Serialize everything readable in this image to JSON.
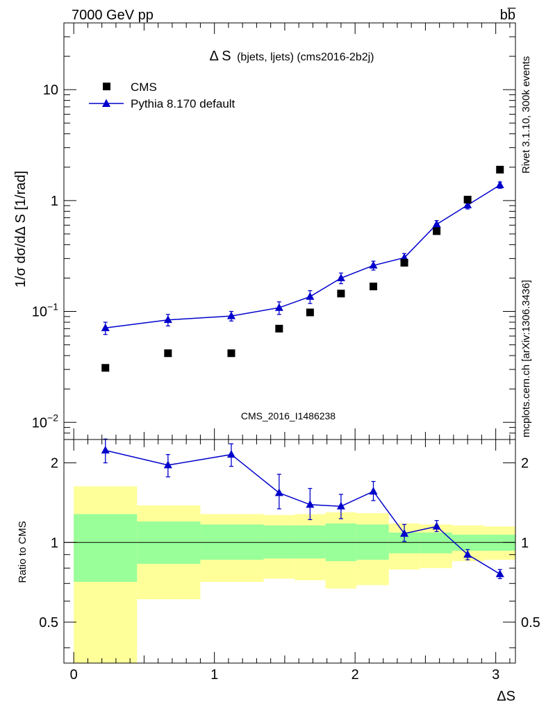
{
  "header": {
    "energy_label": "7000 GeV pp",
    "process_label": "bb̅",
    "rivet_label": "Rivet 3.1.10,  300k events",
    "mcplots_label": "mcplots.cern.ch [arXiv:1306.3436]",
    "analysis_watermark": "CMS_2016_I1486238"
  },
  "colors": {
    "mc": "#0000cc",
    "data": "#000000",
    "band_inner": "#99ff99",
    "band_outer": "#ffff99",
    "text_gray": "#888888"
  },
  "chart_data": [
    {
      "type": "scatter",
      "title_main": "Δ S",
      "title_sub": "(bjets, ljets) (cms2016-2b2j)",
      "ylabel": "1/σ dσ/dΔ S [1/rad]",
      "yscale": "log",
      "ylim": [
        0.007,
        40
      ],
      "xlim": [
        -0.07,
        3.14
      ],
      "ytick_labels": [
        {
          "value": 0.01,
          "label": "10",
          "sup": "−2"
        },
        {
          "value": 0.1,
          "label": "10",
          "sup": "−1"
        },
        {
          "value": 1,
          "label": "1",
          "sup": ""
        },
        {
          "value": 10,
          "label": "10",
          "sup": ""
        }
      ],
      "legend": [
        {
          "name": "CMS",
          "marker": "square"
        },
        {
          "name": "Pythia 8.170 default",
          "marker": "triangle-line"
        }
      ],
      "series": [
        {
          "name": "CMS",
          "x": [
            0.225,
            0.67,
            1.12,
            1.46,
            1.68,
            1.9,
            2.13,
            2.35,
            2.58,
            2.8,
            3.03
          ],
          "y": [
            0.031,
            0.042,
            0.042,
            0.07,
            0.098,
            0.145,
            0.168,
            0.275,
            0.53,
            1.02,
            1.9
          ]
        },
        {
          "name": "Pythia 8.170 default",
          "x": [
            0.225,
            0.67,
            1.12,
            1.46,
            1.68,
            1.9,
            2.13,
            2.35,
            2.58,
            2.8,
            3.03
          ],
          "y": [
            0.071,
            0.084,
            0.091,
            0.108,
            0.136,
            0.2,
            0.26,
            0.305,
            0.61,
            0.91,
            1.38
          ],
          "yerr": [
            0.009,
            0.01,
            0.009,
            0.014,
            0.018,
            0.022,
            0.024,
            0.028,
            0.05,
            0.07,
            0.09
          ]
        }
      ]
    },
    {
      "type": "line",
      "ylabel": "Ratio to CMS",
      "yscale": "log",
      "ylim": [
        0.35,
        2.45
      ],
      "xlim": [
        -0.07,
        3.14
      ],
      "ytick_labels": [
        {
          "value": 0.5,
          "label": "0.5"
        },
        {
          "value": 1,
          "label": "1"
        },
        {
          "value": 2,
          "label": "2"
        }
      ],
      "xtick_labels": [
        {
          "value": 0,
          "label": "0"
        },
        {
          "value": 1,
          "label": "1"
        },
        {
          "value": 2,
          "label": "2"
        },
        {
          "value": 3,
          "label": "3"
        }
      ],
      "xlabel": "ΔS",
      "bands": {
        "edges": [
          0,
          0.45,
          0.9,
          1.35,
          1.57,
          1.79,
          2.01,
          2.24,
          2.46,
          2.69,
          2.92,
          3.14
        ],
        "outer_low": [
          0.35,
          0.61,
          0.71,
          0.73,
          0.72,
          0.67,
          0.69,
          0.79,
          0.8,
          0.85,
          0.86
        ],
        "outer_high": [
          1.63,
          1.38,
          1.28,
          1.27,
          1.28,
          1.3,
          1.29,
          1.18,
          1.17,
          1.16,
          1.15
        ],
        "inner_low": [
          0.71,
          0.83,
          0.86,
          0.87,
          0.87,
          0.85,
          0.86,
          0.91,
          0.91,
          0.93,
          0.93
        ],
        "inner_high": [
          1.28,
          1.2,
          1.17,
          1.16,
          1.16,
          1.18,
          1.17,
          1.09,
          1.09,
          1.07,
          1.07
        ]
      },
      "series": [
        {
          "name": "Pythia 8.170 default",
          "x": [
            0.225,
            0.67,
            1.12,
            1.46,
            1.68,
            1.9,
            2.13,
            2.35,
            2.58,
            2.8,
            3.03
          ],
          "y": [
            2.23,
            1.96,
            2.15,
            1.54,
            1.39,
            1.37,
            1.56,
            1.08,
            1.15,
            0.9,
            0.76
          ],
          "err_low": [
            0.23,
            0.19,
            0.21,
            0.2,
            0.17,
            0.14,
            0.12,
            0.07,
            0.05,
            0.04,
            0.03
          ],
          "err_high": [
            0.23,
            0.19,
            0.21,
            0.27,
            0.21,
            0.15,
            0.14,
            0.09,
            0.06,
            0.04,
            0.03
          ]
        }
      ]
    }
  ]
}
